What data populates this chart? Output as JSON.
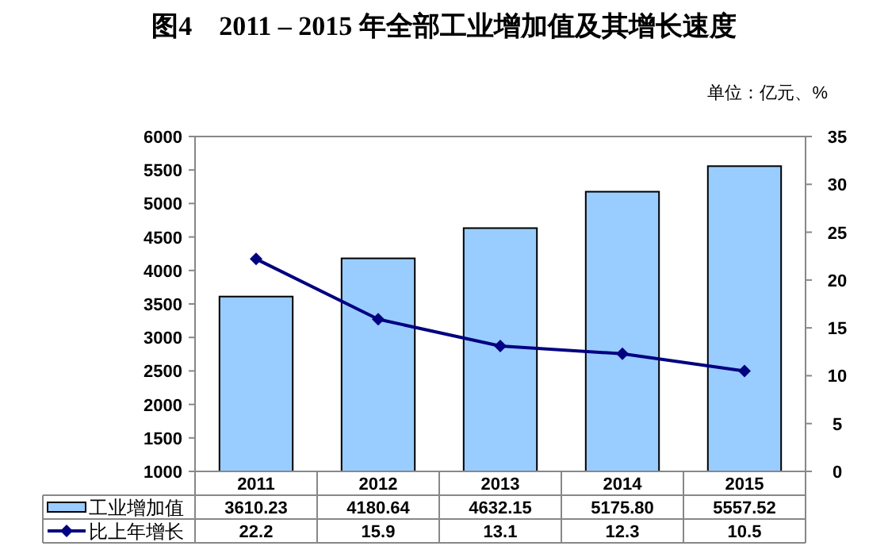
{
  "chart_data": {
    "type": "bar",
    "title": "图4　2011 – 2015 年全部工业增加值及其增长速度",
    "annotations": [
      "单位：亿元、%"
    ],
    "categories": [
      "2011",
      "2012",
      "2013",
      "2014",
      "2015"
    ],
    "series": [
      {
        "name": "工业增加值",
        "color": "#99ccff",
        "values": [
          3610.23,
          4180.64,
          4632.15,
          5175.8,
          5557.52
        ],
        "value_labels": [
          "3610.23",
          "4180.64",
          "4632.15",
          "5175.80",
          "5557.52"
        ]
      },
      {
        "name": "比上年增长",
        "type": "line",
        "axis": "y2",
        "color": "#000080",
        "values": [
          22.2,
          15.9,
          13.1,
          12.3,
          10.5
        ],
        "value_labels": [
          "22.2",
          "15.9",
          "13.1",
          "12.3",
          "10.5"
        ]
      }
    ],
    "ylim": [
      1000,
      6000
    ],
    "yticks": [
      1000,
      1500,
      2000,
      2500,
      3000,
      3500,
      4000,
      4500,
      5000,
      5500,
      6000
    ],
    "y2lim": [
      0,
      35
    ],
    "y2ticks": [
      0,
      5,
      10,
      15,
      20,
      25,
      30,
      35
    ],
    "marker": "diamond",
    "legend": "bottom"
  }
}
